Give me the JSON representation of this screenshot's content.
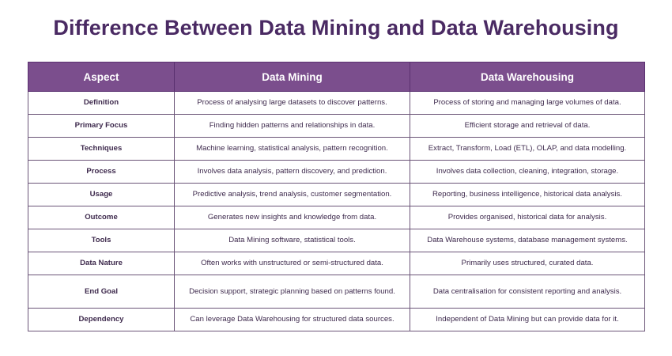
{
  "title": "Difference Between Data Mining and Data Warehousing",
  "headers": [
    "Aspect",
    "Data Mining",
    "Data Warehousing"
  ],
  "rows": [
    {
      "aspect": "Definition",
      "mining": "Process of analysing large datasets to discover patterns.",
      "warehousing": "Process of storing and managing large volumes of data."
    },
    {
      "aspect": "Primary Focus",
      "mining": "Finding hidden patterns and relationships in data.",
      "warehousing": "Efficient storage and retrieval of data."
    },
    {
      "aspect": "Techniques",
      "mining": "Machine learning, statistical analysis, pattern recognition.",
      "warehousing": "Extract, Transform, Load (ETL), OLAP, and data modelling."
    },
    {
      "aspect": "Process",
      "mining": "Involves data analysis, pattern discovery, and prediction.",
      "warehousing": "Involves data collection, cleaning, integration, storage."
    },
    {
      "aspect": "Usage",
      "mining": "Predictive analysis, trend analysis, customer segmentation.",
      "warehousing": "Reporting, business intelligence, historical data analysis."
    },
    {
      "aspect": "Outcome",
      "mining": "Generates new insights and knowledge from data.",
      "warehousing": "Provides organised, historical data for analysis."
    },
    {
      "aspect": "Tools",
      "mining": "Data Mining software, statistical tools.",
      "warehousing": "Data Warehouse systems, database management systems."
    },
    {
      "aspect": "Data Nature",
      "mining": "Often works with unstructured or semi-structured data.",
      "warehousing": "Primarily uses structured, curated data."
    },
    {
      "aspect": "End Goal",
      "mining": "Decision support, strategic planning based on patterns found.",
      "warehousing": "Data centralisation for consistent reporting and analysis."
    },
    {
      "aspect": "Dependency",
      "mining": "Can leverage Data Warehousing for structured data sources.",
      "warehousing": "Independent of Data Mining but can provide data for it."
    }
  ]
}
